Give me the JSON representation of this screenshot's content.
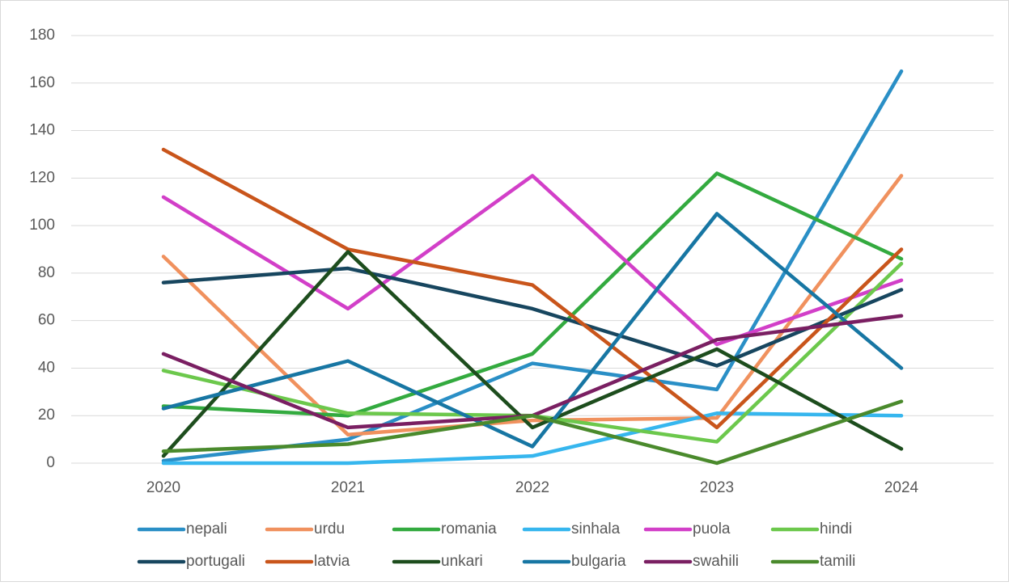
{
  "chart_data": {
    "type": "line",
    "categories": [
      "2020",
      "2021",
      "2022",
      "2023",
      "2024"
    ],
    "series": [
      {
        "name": "nepali",
        "color": "#2a8fc6",
        "values": [
          1,
          10,
          42,
          31,
          165
        ]
      },
      {
        "name": "urdu",
        "color": "#f0915e",
        "values": [
          87,
          12,
          18,
          19,
          121
        ]
      },
      {
        "name": "romania",
        "color": "#33aa3f",
        "values": [
          24,
          20,
          46,
          122,
          86
        ]
      },
      {
        "name": "sinhala",
        "color": "#36b6ee",
        "values": [
          0,
          0,
          3,
          21,
          20
        ]
      },
      {
        "name": "puola",
        "color": "#d23fc8",
        "values": [
          112,
          65,
          121,
          50,
          77
        ]
      },
      {
        "name": "hindi",
        "color": "#6cc84c",
        "values": [
          39,
          21,
          20,
          9,
          84
        ]
      },
      {
        "name": "portugali",
        "color": "#17465f",
        "values": [
          76,
          82,
          65,
          41,
          73
        ]
      },
      {
        "name": "latvia",
        "color": "#c9551b",
        "values": [
          132,
          90,
          75,
          15,
          90
        ]
      },
      {
        "name": "unkari",
        "color": "#1d4d1d",
        "values": [
          3,
          89,
          15,
          48,
          6
        ]
      },
      {
        "name": "bulgaria",
        "color": "#1776a3",
        "values": [
          23,
          43,
          7,
          105,
          40
        ]
      },
      {
        "name": "swahili",
        "color": "#7a1f62",
        "values": [
          46,
          15,
          20,
          52,
          62
        ]
      },
      {
        "name": "tamili",
        "color": "#4a8a2c",
        "values": [
          5,
          8,
          20,
          0,
          26
        ]
      }
    ],
    "ylim": [
      0,
      180
    ],
    "yticks": [
      0,
      20,
      40,
      60,
      80,
      100,
      120,
      140,
      160,
      180
    ],
    "grid": true
  }
}
